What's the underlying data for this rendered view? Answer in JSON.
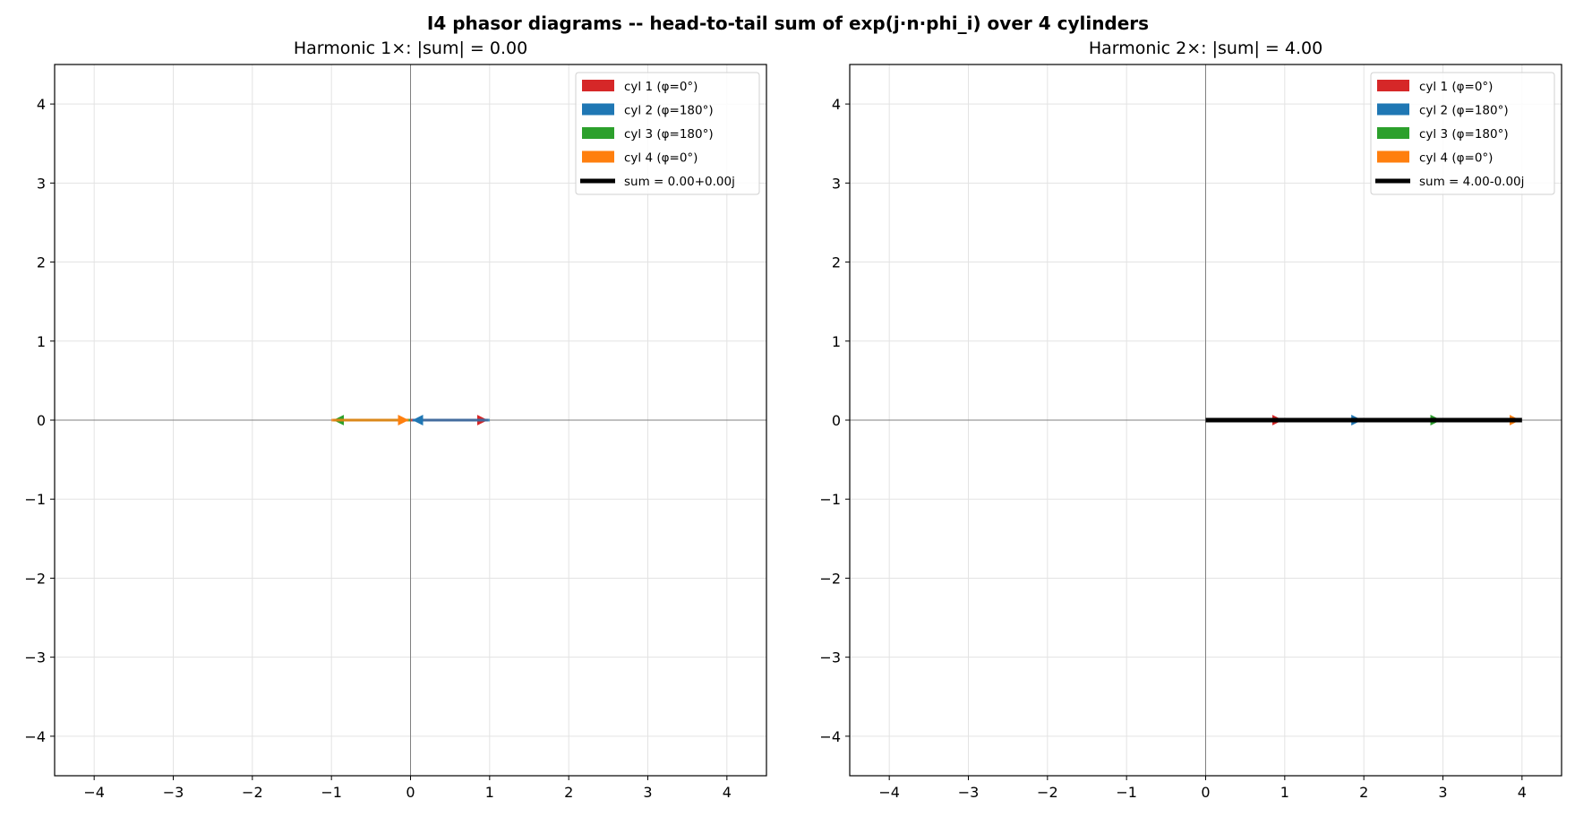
{
  "figure": {
    "suptitle": "I4 phasor diagrams -- head-to-tail sum of exp(j·n·phi_i) over 4 cylinders"
  },
  "chart_data": [
    {
      "type": "line",
      "title": "Harmonic 1×: |sum| = 0.00",
      "xlim": [
        -4.5,
        4.5
      ],
      "ylim": [
        -4.5,
        4.5
      ],
      "xticks": [
        "−4",
        "−3",
        "−2",
        "−1",
        "0",
        "1",
        "2",
        "3",
        "4"
      ],
      "yticks": [
        "−4",
        "−3",
        "−2",
        "−1",
        "0",
        "1",
        "2",
        "3",
        "4"
      ],
      "grid": true,
      "legend_position": "top-right",
      "phasors": [
        {
          "name": "cyl 1 (φ=0°)",
          "color": "#d62728",
          "from": [
            0,
            0
          ],
          "to": [
            1,
            0
          ]
        },
        {
          "name": "cyl 2 (φ=180°)",
          "color": "#1f77b4",
          "from": [
            1,
            0
          ],
          "to": [
            0,
            0
          ]
        },
        {
          "name": "cyl 3 (φ=180°)",
          "color": "#2ca02c",
          "from": [
            0,
            0
          ],
          "to": [
            -1,
            0
          ]
        },
        {
          "name": "cyl 4 (φ=0°)",
          "color": "#ff7f0e",
          "from": [
            -1,
            0
          ],
          "to": [
            0,
            0
          ]
        }
      ],
      "sum": {
        "name": "sum = 0.00+0.00j",
        "color": "#000000",
        "from": [
          0,
          0
        ],
        "to": [
          0,
          0
        ]
      }
    },
    {
      "type": "line",
      "title": "Harmonic 2×: |sum| = 4.00",
      "xlim": [
        -4.5,
        4.5
      ],
      "ylim": [
        -4.5,
        4.5
      ],
      "xticks": [
        "−4",
        "−3",
        "−2",
        "−1",
        "0",
        "1",
        "2",
        "3",
        "4"
      ],
      "yticks": [
        "−4",
        "−3",
        "−2",
        "−1",
        "0",
        "1",
        "2",
        "3",
        "4"
      ],
      "grid": true,
      "legend_position": "top-right",
      "phasors": [
        {
          "name": "cyl 1 (φ=0°)",
          "color": "#d62728",
          "from": [
            0,
            0
          ],
          "to": [
            1,
            0
          ]
        },
        {
          "name": "cyl 2 (φ=180°)",
          "color": "#1f77b4",
          "from": [
            1,
            0
          ],
          "to": [
            2,
            0
          ]
        },
        {
          "name": "cyl 3 (φ=180°)",
          "color": "#2ca02c",
          "from": [
            2,
            0
          ],
          "to": [
            3,
            0
          ]
        },
        {
          "name": "cyl 4 (φ=0°)",
          "color": "#ff7f0e",
          "from": [
            3,
            0
          ],
          "to": [
            4,
            0
          ]
        }
      ],
      "sum": {
        "name": "sum = 4.00-0.00j",
        "color": "#000000",
        "from": [
          0,
          0
        ],
        "to": [
          4,
          0
        ]
      }
    }
  ]
}
